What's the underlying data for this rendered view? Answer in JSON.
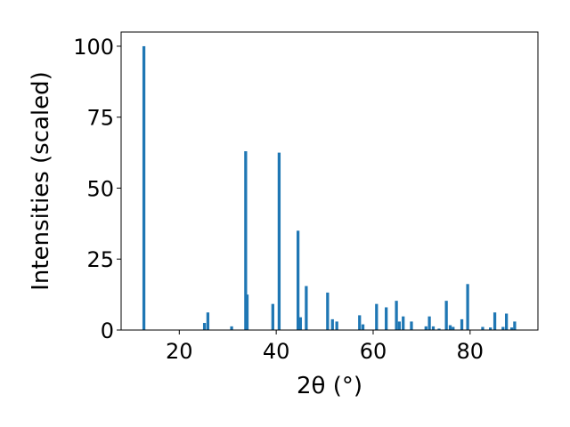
{
  "chart_data": {
    "type": "bar",
    "xlabel": "2θ (°)",
    "ylabel": "Intensities (scaled)",
    "xlim": [
      8,
      94
    ],
    "ylim": [
      0,
      105
    ],
    "xticks": [
      20,
      40,
      60,
      80
    ],
    "yticks": [
      0,
      25,
      50,
      75,
      100
    ],
    "bar_color": "#1f77b4",
    "bar_width": 0.6,
    "grid": false,
    "x": [
      12.7,
      25.2,
      25.9,
      30.8,
      33.7,
      34.0,
      39.3,
      40.6,
      44.5,
      45.0,
      46.2,
      50.6,
      51.6,
      52.5,
      57.2,
      57.9,
      60.7,
      62.7,
      64.8,
      65.4,
      66.2,
      67.9,
      70.9,
      71.6,
      72.4,
      73.6,
      75.1,
      75.9,
      76.5,
      78.3,
      79.5,
      82.6,
      84.2,
      85.1,
      86.8,
      87.5,
      88.6,
      89.2
    ],
    "values": [
      100,
      2.5,
      6.2,
      1.3,
      63,
      12.5,
      9.2,
      62.5,
      35,
      4.5,
      15.5,
      13.2,
      3.8,
      3.0,
      5.2,
      2.0,
      9.2,
      8.0,
      10.3,
      3.0,
      4.8,
      3.0,
      1.3,
      4.8,
      1.3,
      0.5,
      10.3,
      1.7,
      1.1,
      3.8,
      16.2,
      1.1,
      0.9,
      6.2,
      1.1,
      5.8,
      0.9,
      3.0
    ]
  }
}
